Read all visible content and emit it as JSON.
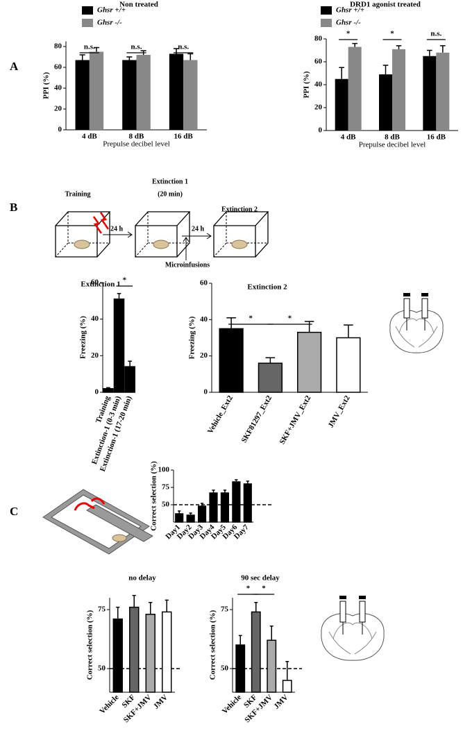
{
  "panels": [
    "A",
    "B",
    "C"
  ],
  "diagram": {
    "training": "Training",
    "extinction1": "Extinction 1",
    "extinction1_duration": "(20 min)",
    "extinction2": "Extinction 2",
    "delay1": "24 h",
    "delay2": "24 h",
    "infusion": "Microinfusions"
  },
  "chart_data": [
    {
      "type": "bar",
      "title": "Non treated",
      "y_label": "PPI (%)",
      "x_label": "Prepulse decibel level",
      "categories": [
        "4 dB",
        "8 dB",
        "16 dB"
      ],
      "series": [
        {
          "name": "Ghsr +/+",
          "color": "#000000",
          "values": [
            67,
            67,
            73
          ],
          "errors": [
            5,
            3,
            5
          ]
        },
        {
          "name": "Ghsr -/-",
          "color": "#888888",
          "values": [
            75,
            72,
            67
          ],
          "errors": [
            4,
            4,
            6
          ]
        }
      ],
      "annotations": [
        "n.s.",
        "n.s.",
        "n.s."
      ],
      "ylim": [
        0,
        85
      ],
      "yticks": [
        0,
        20,
        40,
        60,
        80
      ]
    },
    {
      "type": "bar",
      "title": "DRD1 agonist treated",
      "y_label": "PPI (%)",
      "x_label": "Prepulse decibel level",
      "categories": [
        "4 dB",
        "8 dB",
        "16 dB"
      ],
      "series": [
        {
          "name": "Ghsr +/+",
          "color": "#000000",
          "values": [
            45,
            49,
            65
          ],
          "errors": [
            10,
            8,
            5
          ]
        },
        {
          "name": "Ghsr -/-",
          "color": "#888888",
          "values": [
            73,
            71,
            68
          ],
          "errors": [
            3,
            3,
            6
          ]
        }
      ],
      "annotations": [
        "*",
        "*",
        "n.s."
      ],
      "ylim": [
        0,
        80
      ],
      "yticks": [
        0,
        20,
        40,
        60,
        80
      ]
    },
    {
      "type": "bar",
      "title": "Extinction 1",
      "y_label": "Freezing (%)",
      "categories": [
        "Training",
        "Extinction-1 (0-3 min)",
        "Extinction-1 (17-20 min)"
      ],
      "values": [
        2,
        51,
        14
      ],
      "errors": [
        0.5,
        3,
        3
      ],
      "colors": [
        "#000000",
        "#000000",
        "#000000"
      ],
      "annotations": [
        "*"
      ],
      "ylim": [
        0,
        60
      ],
      "yticks": [
        0,
        20,
        40,
        60
      ]
    },
    {
      "type": "bar",
      "title": "Extinction 2",
      "y_label": "Freezing (%)",
      "categories": [
        "Vehicle_Ext2",
        "SKF81297_Ext2",
        "SKF+JMV_Ext2",
        "JMV_Ext2"
      ],
      "values": [
        35,
        16,
        33,
        30
      ],
      "errors": [
        6,
        3,
        6,
        7
      ],
      "colors": [
        "#000000",
        "#666666",
        "#aaaaaa",
        "#ffffff"
      ],
      "annotations": [
        "*",
        "*"
      ],
      "ylim": [
        0,
        60
      ],
      "yticks": [
        0,
        20,
        40,
        60
      ]
    },
    {
      "type": "bar",
      "y_label": "Correct selection (%)",
      "categories": [
        "Day1",
        "Day2",
        "Day3",
        "Day4",
        "Day5",
        "Day6",
        "Day7"
      ],
      "values": [
        37,
        35,
        48,
        67,
        67,
        83,
        80
      ],
      "errors": [
        4,
        3,
        4,
        4,
        4,
        3,
        4
      ],
      "colors": [
        "#000000",
        "#000000",
        "#000000",
        "#000000",
        "#000000",
        "#000000",
        "#000000"
      ],
      "reference_line": 50,
      "ylim": [
        25,
        100
      ],
      "yticks": [
        50,
        75,
        100
      ]
    },
    {
      "type": "bar",
      "title": "no delay",
      "y_label": "Correct selection (%)",
      "categories": [
        "Vehicle",
        "SKF",
        "SKF+JMV",
        "JMV"
      ],
      "values": [
        71,
        76,
        73,
        74
      ],
      "errors": [
        5,
        5,
        5,
        5
      ],
      "colors": [
        "#000000",
        "#666666",
        "#aaaaaa",
        "#ffffff"
      ],
      "reference_line": 50,
      "ylim": [
        40,
        80
      ],
      "yticks": [
        50,
        75
      ]
    },
    {
      "type": "bar",
      "title": "90 sec delay",
      "y_label": "Correct selection (%)",
      "categories": [
        "Vehicle",
        "SKF",
        "SKF+JMV",
        "JMV"
      ],
      "values": [
        60,
        74,
        62,
        45
      ],
      "errors": [
        4,
        4,
        6,
        8
      ],
      "colors": [
        "#000000",
        "#666666",
        "#aaaaaa",
        "#ffffff"
      ],
      "annotations": [
        "*",
        "*"
      ],
      "reference_line": 50,
      "ylim": [
        40,
        80
      ],
      "yticks": [
        50,
        75
      ]
    }
  ]
}
